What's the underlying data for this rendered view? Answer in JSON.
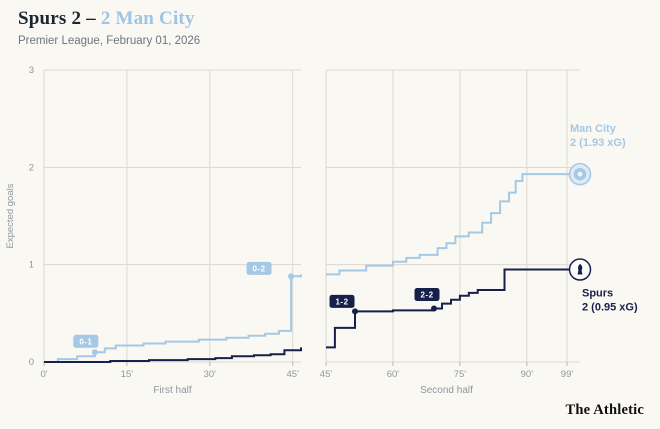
{
  "header": {
    "title_home": "Spurs 2 –",
    "title_away": "2 Man City",
    "subtitle": "Premier League, February 01, 2026"
  },
  "footer": {
    "brand": "The Athletic"
  },
  "colors": {
    "home": "#16204a",
    "away": "#a5c8e4",
    "grid": "#dcd9d1",
    "tick": "#b9b6ae",
    "axis_text": "#8d97a0",
    "background": "#faf8f3",
    "title_text": "#1c2430",
    "subtitle_text": "#6a7680",
    "badge_text": "#ffffff"
  },
  "chart_data": {
    "type": "line",
    "title": "Expected goals race chart — Spurs 2-2 Man City",
    "ylabel": "Expected goals",
    "ylim": [
      0,
      3
    ],
    "yticks": [
      0,
      1,
      2,
      3
    ],
    "legend": "inline-endpoint-labels",
    "grid": true,
    "panels": [
      {
        "label": "First half",
        "xlim": [
          0,
          46.5
        ],
        "xticks": [
          {
            "v": 0,
            "label": "0'"
          },
          {
            "v": 15,
            "label": "15'"
          },
          {
            "v": 30,
            "label": "30'"
          },
          {
            "v": 45,
            "label": "45'"
          }
        ],
        "series": [
          {
            "name": "Man City",
            "color_key": "away",
            "points": [
              [
                0,
                0
              ],
              [
                2.5,
                0.03
              ],
              [
                6,
                0.06
              ],
              [
                9.2,
                0.1
              ],
              [
                11,
                0.14
              ],
              [
                13,
                0.17
              ],
              [
                18,
                0.19
              ],
              [
                22,
                0.21
              ],
              [
                28,
                0.23
              ],
              [
                33,
                0.25
              ],
              [
                37,
                0.27
              ],
              [
                40,
                0.29
              ],
              [
                42.5,
                0.32
              ],
              [
                44.7,
                0.88
              ],
              [
                46.5,
                0.9
              ]
            ],
            "goals": [
              {
                "minute": 9.2,
                "xg": 0.1,
                "score": "0-1",
                "badge_offset": [
                  -9,
                  -11
                ]
              },
              {
                "minute": 44.7,
                "xg": 0.88,
                "score": "0-2",
                "badge_offset": [
                  -32,
                  -8
                ]
              }
            ]
          },
          {
            "name": "Spurs",
            "color_key": "home",
            "points": [
              [
                0,
                0
              ],
              [
                12,
                0.01
              ],
              [
                19,
                0.02
              ],
              [
                26,
                0.03
              ],
              [
                31,
                0.04
              ],
              [
                34,
                0.06
              ],
              [
                38,
                0.07
              ],
              [
                41,
                0.08
              ],
              [
                43.5,
                0.12
              ],
              [
                46.5,
                0.15
              ]
            ],
            "goals": []
          }
        ]
      },
      {
        "label": "Second half",
        "xlim": [
          45,
          99
        ],
        "xticks": [
          {
            "v": 45,
            "label": "45'"
          },
          {
            "v": 60,
            "label": "60'"
          },
          {
            "v": 75,
            "label": "75'"
          },
          {
            "v": 90,
            "label": "90'"
          },
          {
            "v": 99,
            "label": "99'"
          }
        ],
        "series": [
          {
            "name": "Man City",
            "color_key": "away",
            "points": [
              [
                45,
                0.9
              ],
              [
                48,
                0.94
              ],
              [
                54,
                0.99
              ],
              [
                60,
                1.03
              ],
              [
                63,
                1.07
              ],
              [
                66,
                1.1
              ],
              [
                70,
                1.17
              ],
              [
                72,
                1.22
              ],
              [
                74,
                1.29
              ],
              [
                77,
                1.33
              ],
              [
                80,
                1.43
              ],
              [
                82,
                1.53
              ],
              [
                84,
                1.65
              ],
              [
                86,
                1.74
              ],
              [
                87.5,
                1.86
              ],
              [
                89,
                1.93
              ],
              [
                99,
                1.93
              ]
            ],
            "goals": [],
            "end_label": {
              "lines": [
                "Man City",
                "2 (1.93 xG)"
              ],
              "final_xg": 1.93
            }
          },
          {
            "name": "Spurs",
            "color_key": "home",
            "points": [
              [
                45,
                0.15
              ],
              [
                47,
                0.35
              ],
              [
                51.5,
                0.52
              ],
              [
                60,
                0.53
              ],
              [
                69.2,
                0.55
              ],
              [
                71,
                0.6
              ],
              [
                73,
                0.64
              ],
              [
                75,
                0.68
              ],
              [
                77,
                0.71
              ],
              [
                79,
                0.74
              ],
              [
                85,
                0.95
              ],
              [
                99,
                0.95
              ]
            ],
            "goals": [
              {
                "minute": 51.5,
                "xg": 0.52,
                "score": "1-2",
                "badge_offset": [
                  -13,
                  -10
                ]
              },
              {
                "minute": 69.2,
                "xg": 0.55,
                "score": "2-2",
                "badge_offset": [
                  -7,
                  -14
                ]
              }
            ],
            "end_label": {
              "lines": [
                "Spurs",
                "2 (0.95 xG)"
              ],
              "final_xg": 0.95
            }
          }
        ]
      }
    ]
  }
}
